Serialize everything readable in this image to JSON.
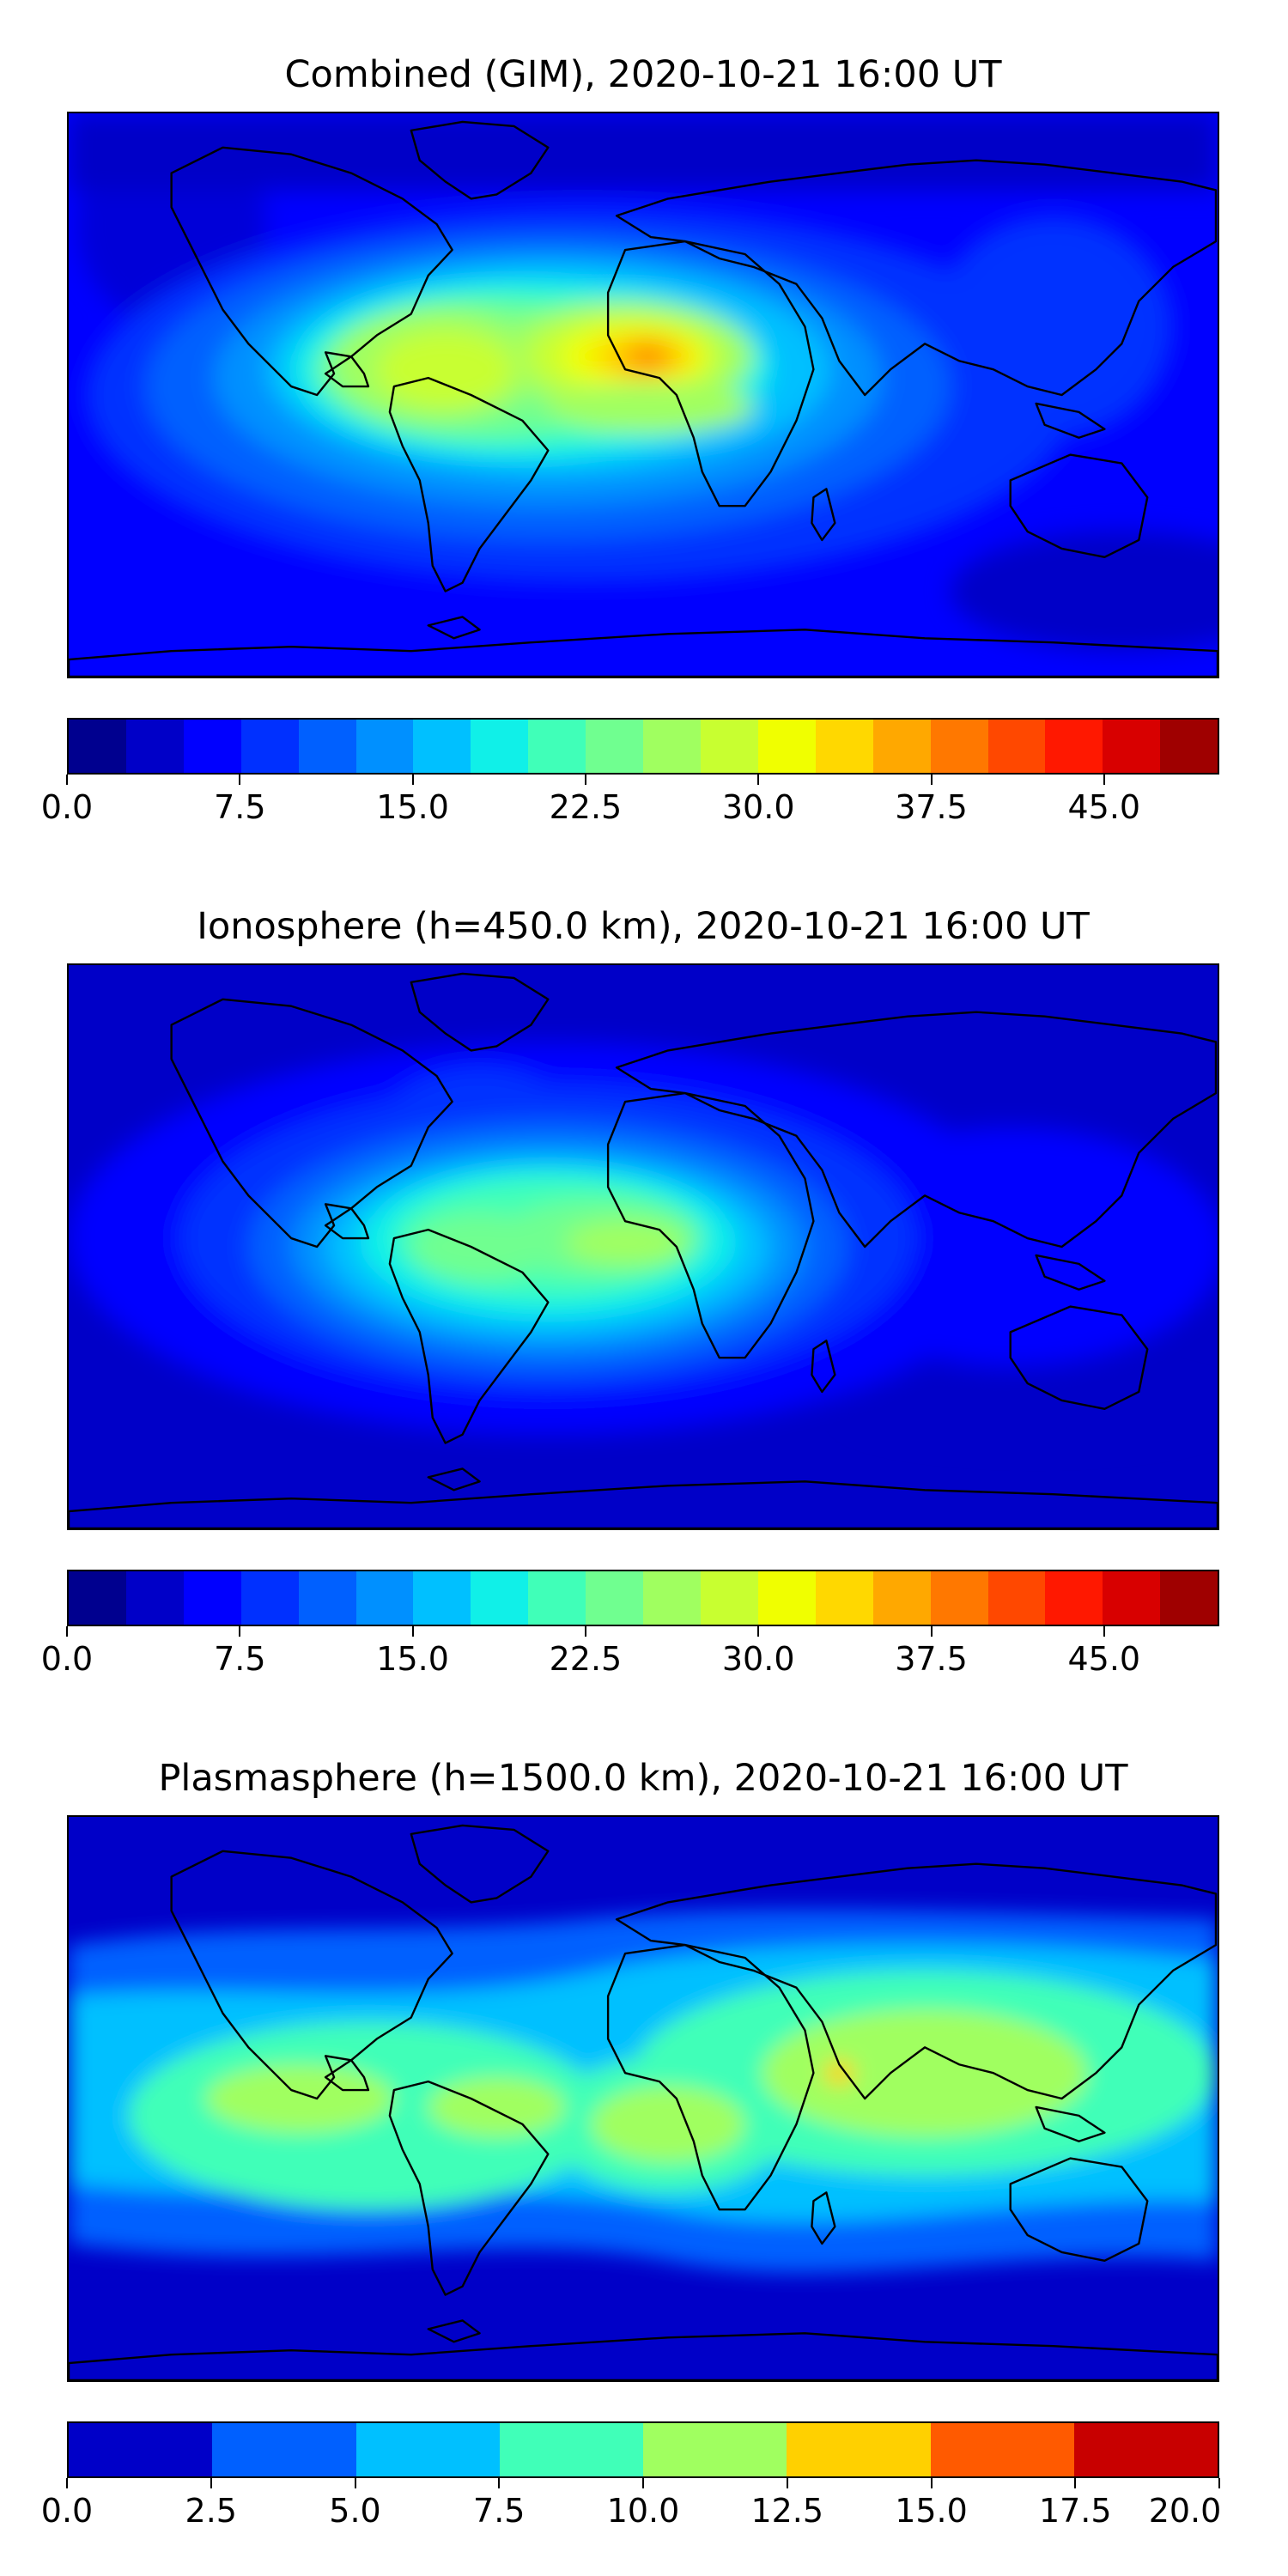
{
  "panels": [
    {
      "title": "Combined (GIM), 2020-10-21 16:00 UT",
      "colorbar": {
        "min": 0,
        "max": 50,
        "levels": 20,
        "colors": [
          "#00008f",
          "#0000c8",
          "#0000ff",
          "#0030ff",
          "#0060ff",
          "#0090ff",
          "#00c0ff",
          "#10f0e8",
          "#40ffb8",
          "#70ff90",
          "#a0ff60",
          "#c8ff30",
          "#f0ff00",
          "#ffd800",
          "#ffa800",
          "#ff7800",
          "#ff4800",
          "#ff1800",
          "#d80000",
          "#9f0000"
        ],
        "tick_labels": [
          "0.0",
          "7.5",
          "15.0",
          "22.5",
          "30.0",
          "37.5",
          "45.0"
        ],
        "tick_values": [
          0,
          7.5,
          15,
          22.5,
          30,
          37.5,
          45
        ]
      }
    },
    {
      "title": "Ionosphere  (h=450.0 km), 2020-10-21 16:00 UT",
      "colorbar": {
        "min": 0,
        "max": 50,
        "levels": 20,
        "colors": [
          "#00008f",
          "#0000c8",
          "#0000ff",
          "#0030ff",
          "#0060ff",
          "#0090ff",
          "#00c0ff",
          "#10f0e8",
          "#40ffb8",
          "#70ff90",
          "#a0ff60",
          "#c8ff30",
          "#f0ff00",
          "#ffd800",
          "#ffa800",
          "#ff7800",
          "#ff4800",
          "#ff1800",
          "#d80000",
          "#9f0000"
        ],
        "tick_labels": [
          "0.0",
          "7.5",
          "15.0",
          "22.5",
          "30.0",
          "37.5",
          "45.0"
        ],
        "tick_values": [
          0,
          7.5,
          15,
          22.5,
          30,
          37.5,
          45
        ]
      }
    },
    {
      "title": "Plasmasphere (h=1500.0 km), 2020-10-21 16:00 UT",
      "colorbar": {
        "min": 0,
        "max": 20,
        "levels": 8,
        "colors": [
          "#0000c8",
          "#0060ff",
          "#00c0ff",
          "#40ffb8",
          "#a0ff60",
          "#ffd000",
          "#ff5a00",
          "#c80000"
        ],
        "tick_labels": [
          "0.0",
          "2.5",
          "5.0",
          "7.5",
          "10.0",
          "12.5",
          "15.0",
          "17.5",
          "20.0"
        ],
        "tick_values": [
          0,
          2.5,
          5,
          7.5,
          10,
          12.5,
          15,
          17.5,
          20
        ]
      }
    }
  ]
}
